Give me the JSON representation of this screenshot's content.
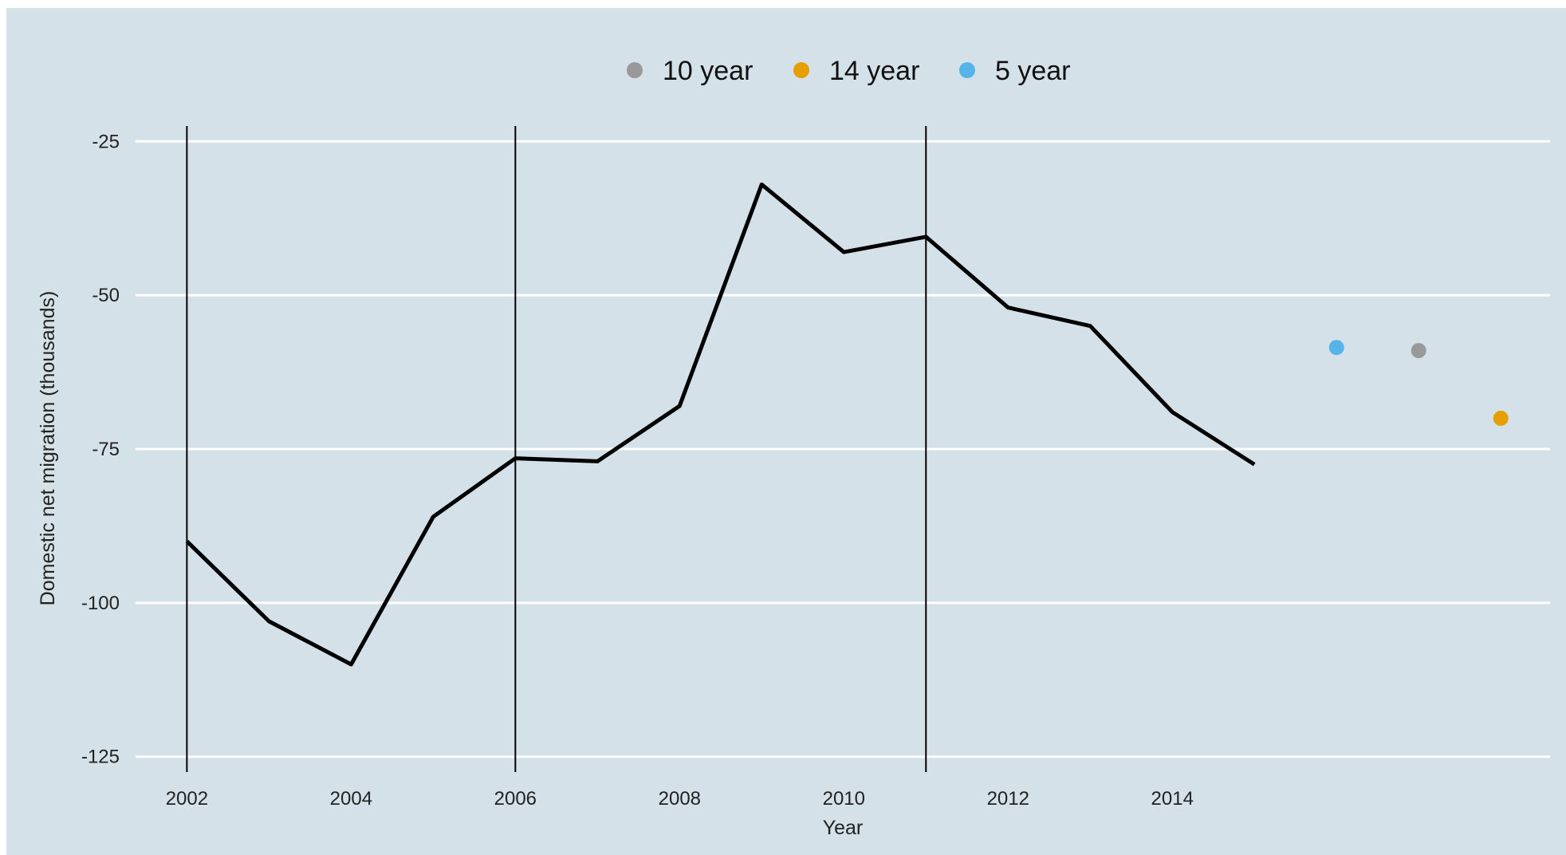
{
  "chart_data": {
    "type": "line",
    "title": "",
    "xlabel": "Year",
    "ylabel": "Domestic net migration (thousands)",
    "xlim": [
      2001.2,
      2018.6
    ],
    "ylim": [
      -127.5,
      -22.5
    ],
    "x_ticks": [
      2002,
      2004,
      2006,
      2008,
      2010,
      2012,
      2014
    ],
    "y_ticks": [
      -25,
      -50,
      -75,
      -100,
      -125
    ],
    "grid": "horizontal",
    "legend_position": "top",
    "reference_lines_x": [
      2002,
      2006,
      2011
    ],
    "line_color": "#000000",
    "series": [
      {
        "x": [
          2002,
          2003,
          2004,
          2005,
          2006,
          2007,
          2008,
          2009,
          2010,
          2011,
          2012,
          2013,
          2014,
          2015
        ],
        "y": [
          -90,
          -103,
          -110,
          -86,
          -76.5,
          -77,
          -68,
          -32,
          -43,
          -40.5,
          -52,
          -55,
          -69,
          -77.5
        ]
      }
    ],
    "points": [
      {
        "name": "5 year",
        "x": 2016,
        "y": -58.5,
        "color": "#56b4e9"
      },
      {
        "name": "10 year",
        "x": 2017,
        "y": -59,
        "color": "#999999"
      },
      {
        "name": "14 year",
        "x": 2018,
        "y": -70,
        "color": "#e69f00"
      }
    ],
    "legend": [
      {
        "label": "10 year",
        "color": "#999999"
      },
      {
        "label": "14 year",
        "color": "#e69f00"
      },
      {
        "label": "5 year",
        "color": "#56b4e9"
      }
    ]
  }
}
